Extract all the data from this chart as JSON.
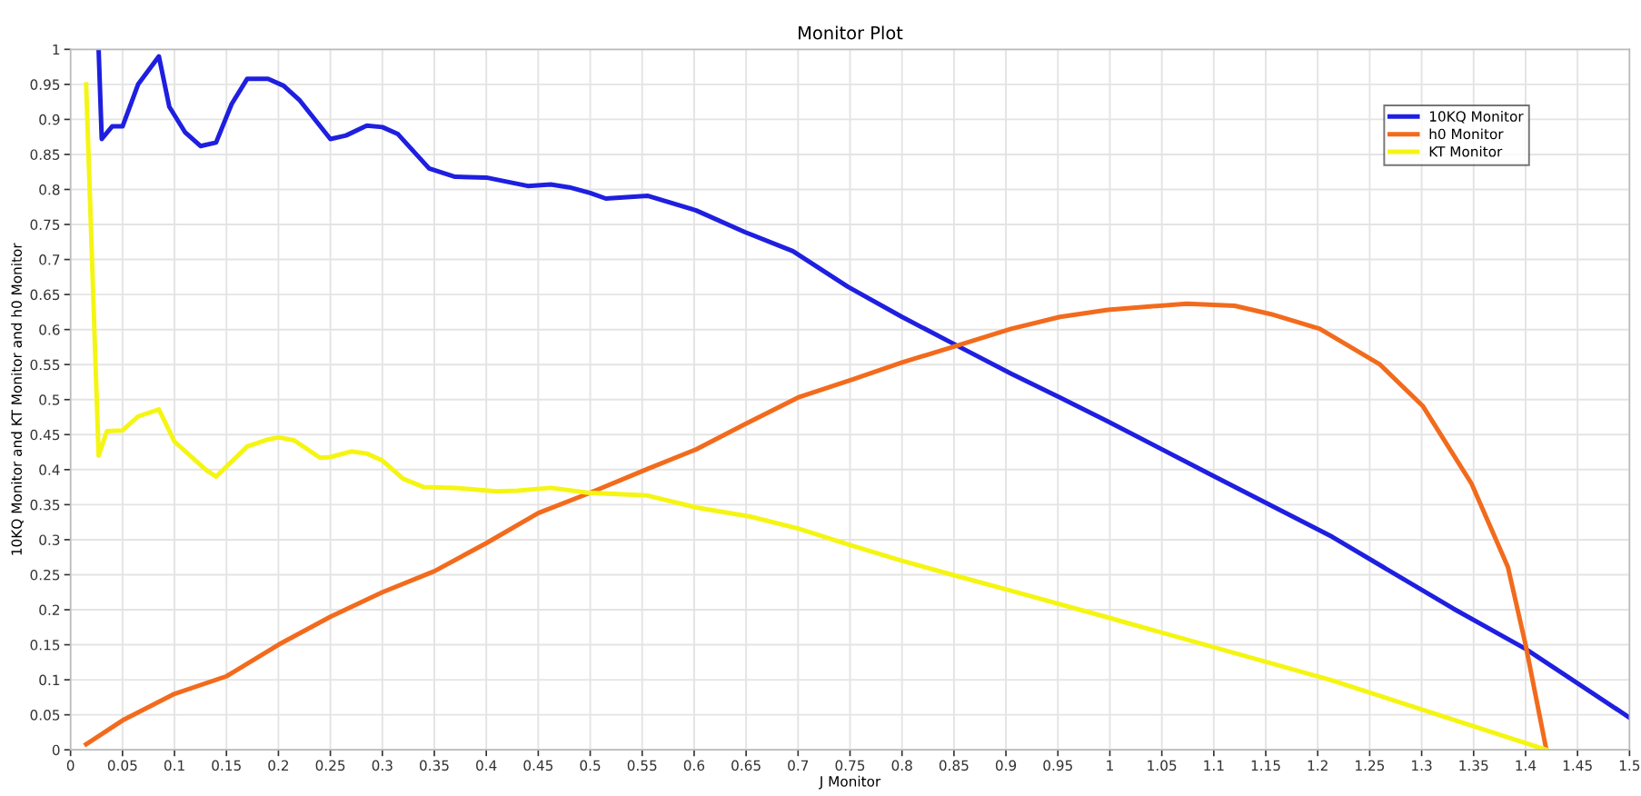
{
  "chart_data": {
    "type": "line",
    "title": "Monitor Plot",
    "xlabel": "J Monitor",
    "ylabel": "10KQ Monitor and KT Monitor and h0 Monitor",
    "xlim": [
      0,
      1.5
    ],
    "ylim": [
      0,
      1
    ],
    "xticks": [
      0,
      0.05,
      0.1,
      0.15,
      0.2,
      0.25,
      0.3,
      0.35,
      0.4,
      0.45,
      0.5,
      0.55,
      0.6,
      0.65,
      0.7,
      0.75,
      0.8,
      0.85,
      0.9,
      0.95,
      1,
      1.05,
      1.1,
      1.15,
      1.2,
      1.25,
      1.3,
      1.35,
      1.4,
      1.45,
      1.5
    ],
    "yticks": [
      0,
      0.05,
      0.1,
      0.15,
      0.2,
      0.25,
      0.3,
      0.35,
      0.4,
      0.45,
      0.5,
      0.55,
      0.6,
      0.65,
      0.7,
      0.75,
      0.8,
      0.85,
      0.9,
      0.95,
      1
    ],
    "grid": true,
    "legend": "top right",
    "marker": "none",
    "line_style": "solid",
    "series": [
      {
        "name": "10KQ Monitor",
        "color": "#1f1fe0",
        "x": [
          0.027,
          0.03,
          0.04,
          0.05,
          0.065,
          0.085,
          0.095,
          0.11,
          0.125,
          0.14,
          0.155,
          0.17,
          0.19,
          0.205,
          0.22,
          0.25,
          0.265,
          0.285,
          0.3,
          0.315,
          0.345,
          0.37,
          0.4,
          0.44,
          0.462,
          0.48,
          0.5,
          0.515,
          0.555,
          0.602,
          0.649,
          0.695,
          0.748,
          0.8,
          0.853,
          0.905,
          0.952,
          0.998,
          1.097,
          1.214,
          1.33,
          1.4,
          1.5
        ],
        "values": [
          1.0,
          0.872,
          0.89,
          0.89,
          0.95,
          0.99,
          0.918,
          0.882,
          0.862,
          0.867,
          0.922,
          0.958,
          0.958,
          0.948,
          0.928,
          0.872,
          0.877,
          0.891,
          0.889,
          0.879,
          0.83,
          0.818,
          0.817,
          0.805,
          0.807,
          0.803,
          0.795,
          0.787,
          0.791,
          0.77,
          0.739,
          0.712,
          0.661,
          0.618,
          0.577,
          0.537,
          0.503,
          0.469,
          0.393,
          0.304,
          0.202,
          0.144,
          0.046
        ]
      },
      {
        "name": "h0 Monitor",
        "color": "#f26b1d",
        "x": [
          0.015,
          0.05,
          0.1,
          0.15,
          0.2,
          0.25,
          0.3,
          0.35,
          0.4,
          0.45,
          0.5,
          0.555,
          0.602,
          0.649,
          0.7,
          0.753,
          0.8,
          0.853,
          0.905,
          0.952,
          0.998,
          1.074,
          1.12,
          1.155,
          1.202,
          1.26,
          1.301,
          1.348,
          1.383,
          1.4,
          1.42
        ],
        "values": [
          0.008,
          0.042,
          0.08,
          0.105,
          0.15,
          0.19,
          0.225,
          0.255,
          0.295,
          0.338,
          0.367,
          0.401,
          0.429,
          0.465,
          0.503,
          0.529,
          0.553,
          0.577,
          0.601,
          0.618,
          0.628,
          0.637,
          0.634,
          0.622,
          0.601,
          0.55,
          0.491,
          0.38,
          0.261,
          0.15,
          0.0
        ]
      },
      {
        "name": "KT Monitor",
        "color": "#f5f514",
        "x": [
          0.015,
          0.027,
          0.035,
          0.05,
          0.065,
          0.085,
          0.1,
          0.13,
          0.14,
          0.17,
          0.19,
          0.2,
          0.215,
          0.24,
          0.25,
          0.27,
          0.285,
          0.3,
          0.32,
          0.34,
          0.37,
          0.41,
          0.43,
          0.462,
          0.498,
          0.555,
          0.602,
          0.654,
          0.7,
          0.753,
          0.8,
          0.853,
          0.905,
          0.998,
          1.214,
          1.42
        ],
        "values": [
          0.95,
          0.42,
          0.455,
          0.456,
          0.476,
          0.486,
          0.44,
          0.4,
          0.39,
          0.433,
          0.443,
          0.446,
          0.442,
          0.417,
          0.418,
          0.426,
          0.423,
          0.413,
          0.387,
          0.375,
          0.374,
          0.369,
          0.37,
          0.374,
          0.367,
          0.363,
          0.346,
          0.333,
          0.316,
          0.291,
          0.27,
          0.248,
          0.227,
          0.189,
          0.099,
          0.0
        ]
      }
    ]
  }
}
